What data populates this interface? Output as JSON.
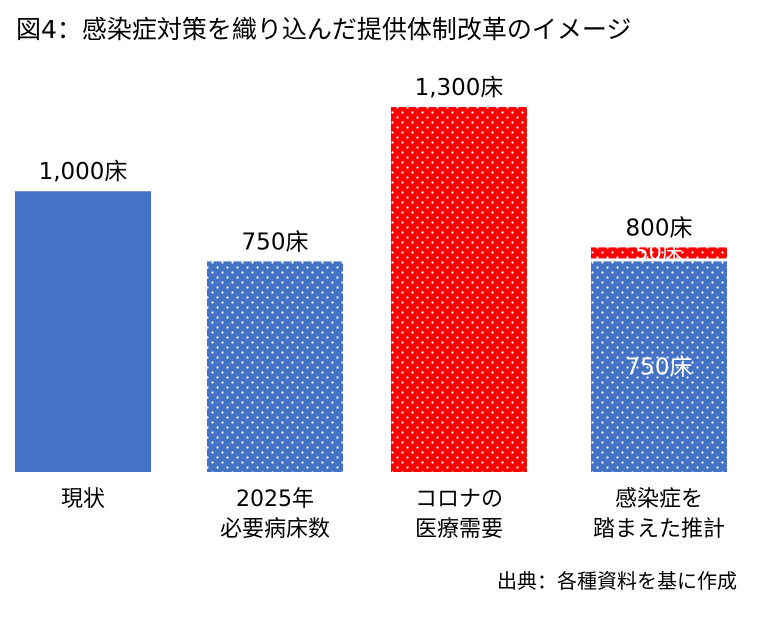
{
  "title": "図4：感染症対策を織り込んだ提供体制改革のイメージ",
  "source": "出典：各種資料を基に作成",
  "colors": {
    "blue": "#4472C4",
    "red": "#FF0000",
    "dots": "#ffffff"
  },
  "chart_data": {
    "type": "bar",
    "stacked": true,
    "unit": "床",
    "ylim": [
      0,
      1300
    ],
    "grid": false,
    "legend": "none",
    "categories": [
      [
        "現状"
      ],
      [
        "2025年",
        "必要病床数"
      ],
      [
        "コロナの",
        "医療需要"
      ],
      [
        "感染症を",
        "踏まえた推計"
      ]
    ],
    "totals": [
      "1,000床",
      "750床",
      "1,300床",
      "800床"
    ],
    "bars": [
      [
        {
          "value": 1000,
          "color": "blue",
          "pattern": "solid",
          "label": ""
        }
      ],
      [
        {
          "value": 750,
          "color": "blue",
          "pattern": "dots",
          "label": ""
        }
      ],
      [
        {
          "value": 1300,
          "color": "red",
          "pattern": "dots",
          "label": ""
        }
      ],
      [
        {
          "value": 750,
          "color": "blue",
          "pattern": "dots",
          "label": "750床"
        },
        {
          "value": 50,
          "color": "red",
          "pattern": "dots",
          "label": "50床"
        }
      ]
    ]
  }
}
